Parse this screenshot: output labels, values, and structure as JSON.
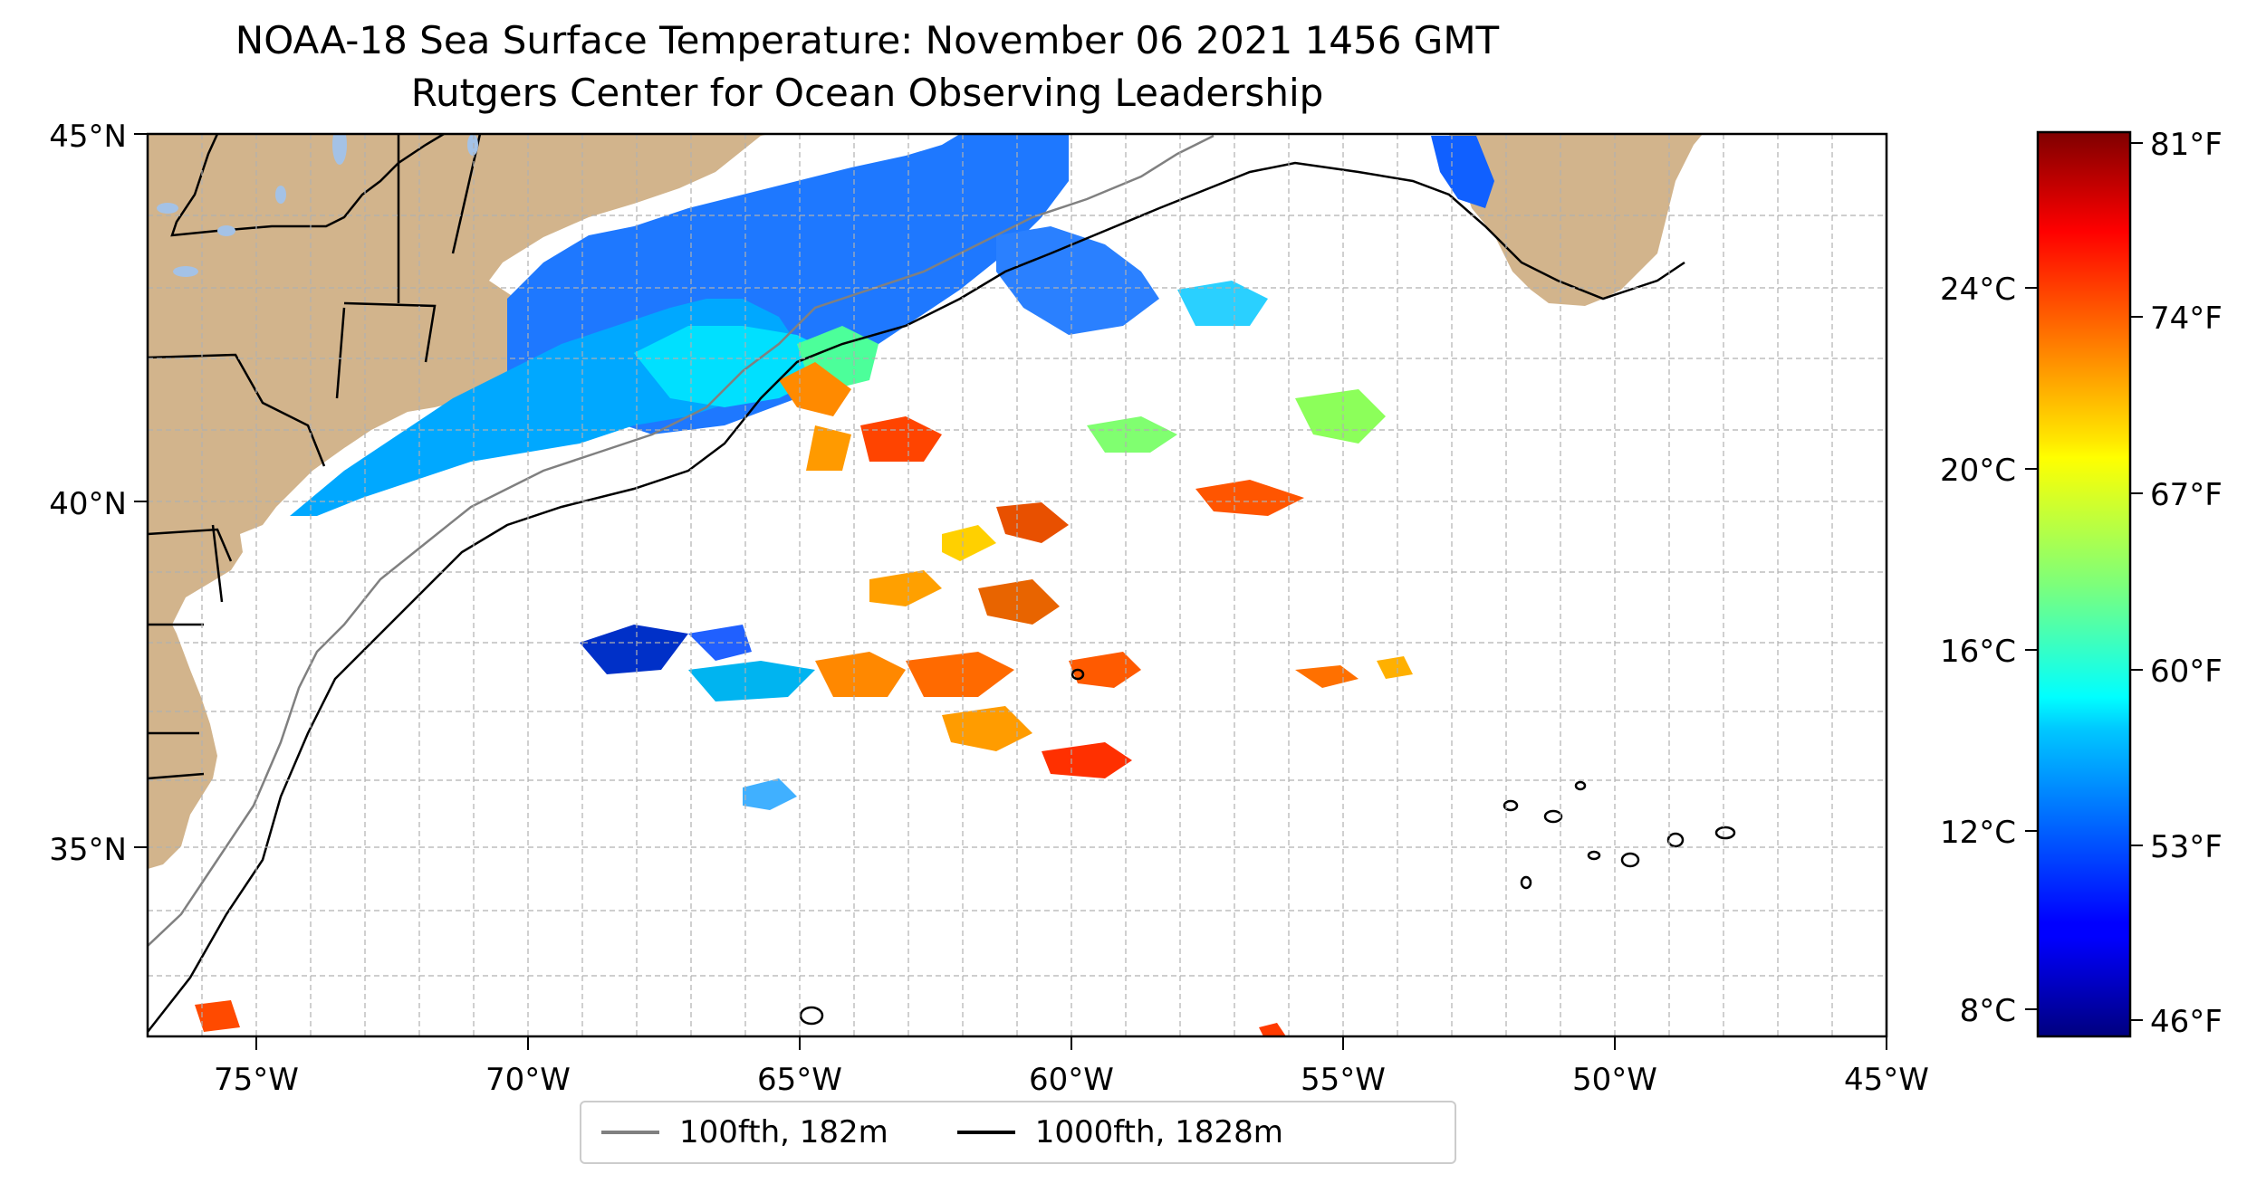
{
  "map": {
    "title": "NOAA-18 Sea Surface Temperature: November 06 2021 1456 GMT",
    "subtitle": "Rutgers Center for Ocean Observing Leadership",
    "longitude_ticks": [
      "75°W",
      "70°W",
      "65°W",
      "60°W",
      "55°W",
      "50°W",
      "45°W"
    ],
    "latitude_ticks": [
      "45°N",
      "40°N",
      "35°N"
    ],
    "extent": {
      "lon_min": -77,
      "lon_max": -45,
      "lat_min": 32.2,
      "lat_max": 45
    },
    "colors": {
      "land": "#d2b48c",
      "water_bodies": "#a4c2e6",
      "grid": "#b0b0b0"
    }
  },
  "colorbar": {
    "celsius_ticks": [
      "8°C",
      "12°C",
      "16°C",
      "20°C",
      "24°C"
    ],
    "fahrenheit_ticks": [
      "46°F",
      "53°F",
      "60°F",
      "67°F",
      "74°F",
      "81°F"
    ],
    "colormap": "jet"
  },
  "legend": {
    "items": [
      {
        "label": "100fth, 182m",
        "color": "#808080"
      },
      {
        "label": "1000fth, 1828m",
        "color": "#000000"
      }
    ]
  }
}
